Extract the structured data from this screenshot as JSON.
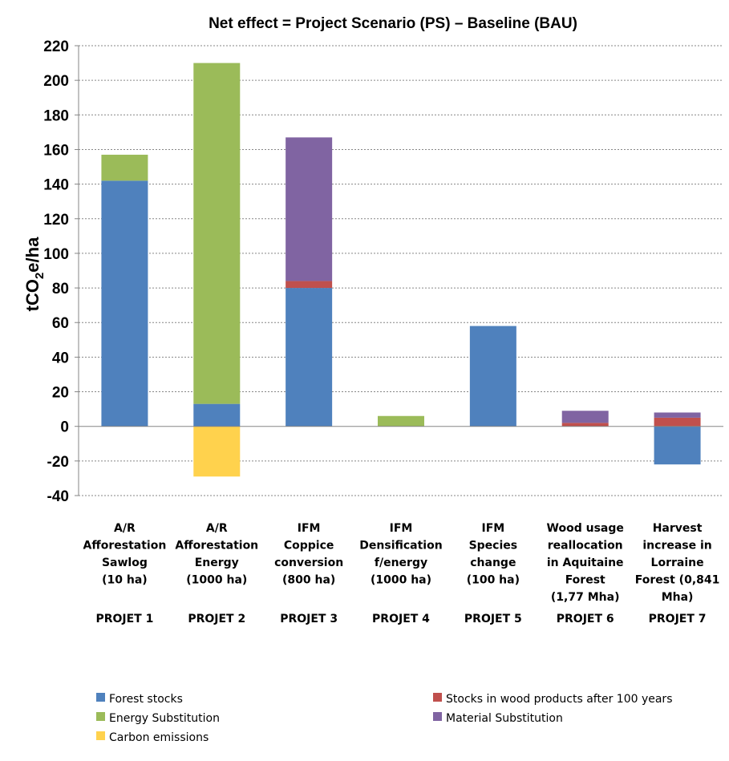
{
  "chart_data": {
    "type": "bar",
    "stacked": true,
    "title": "Net effect = Project Scenario (PS) – Baseline (BAU)",
    "ylabel": "tCO2e/ha",
    "ylim": [
      -40,
      220
    ],
    "yticks": [
      -40,
      -20,
      0,
      20,
      40,
      60,
      80,
      100,
      120,
      140,
      160,
      180,
      200,
      220
    ],
    "grid": true,
    "legend_position": "bottom",
    "categories": [
      {
        "lines": [
          "A/R",
          "Afforestation",
          "Sawlog",
          "(10 ha)"
        ],
        "project": "PROJET 1"
      },
      {
        "lines": [
          "A/R",
          "Afforestation",
          "Energy",
          "(1000 ha)"
        ],
        "project": "PROJET 2"
      },
      {
        "lines": [
          "IFM",
          "Coppice",
          "conversion",
          "(800 ha)"
        ],
        "project": "PROJET 3"
      },
      {
        "lines": [
          "IFM",
          "Densification",
          "f/energy",
          "(1000 ha)"
        ],
        "project": "PROJET 4"
      },
      {
        "lines": [
          "IFM",
          "Species",
          "change",
          "(100 ha)"
        ],
        "project": "PROJET 5"
      },
      {
        "lines": [
          "Wood usage",
          "reallocation",
          "in Aquitaine",
          "Forest",
          "(1,77 Mha)"
        ],
        "project": "PROJET 6"
      },
      {
        "lines": [
          "Harvest",
          "increase in",
          "Lorraine",
          "Forest (0,841",
          "Mha)"
        ],
        "project": "PROJET 7"
      }
    ],
    "series": [
      {
        "name": "Forest stocks",
        "color": "#4F81BD",
        "values": [
          142,
          13,
          80,
          0,
          58,
          0,
          -22
        ]
      },
      {
        "name": "Stocks in wood products after 100 years",
        "color": "#C0504D",
        "values": [
          0,
          0,
          4,
          0,
          0,
          2,
          5
        ]
      },
      {
        "name": "Energy Substitution",
        "color": "#9BBB59",
        "values": [
          15,
          197,
          0,
          6,
          0,
          0,
          0
        ]
      },
      {
        "name": "Material Substitution",
        "color": "#8064A2",
        "values": [
          0,
          0,
          83,
          0,
          0,
          7,
          3
        ]
      },
      {
        "name": "Carbon emissions",
        "color": "#FFD24D",
        "values": [
          0,
          -29,
          0,
          0,
          0,
          0,
          0
        ]
      }
    ]
  }
}
